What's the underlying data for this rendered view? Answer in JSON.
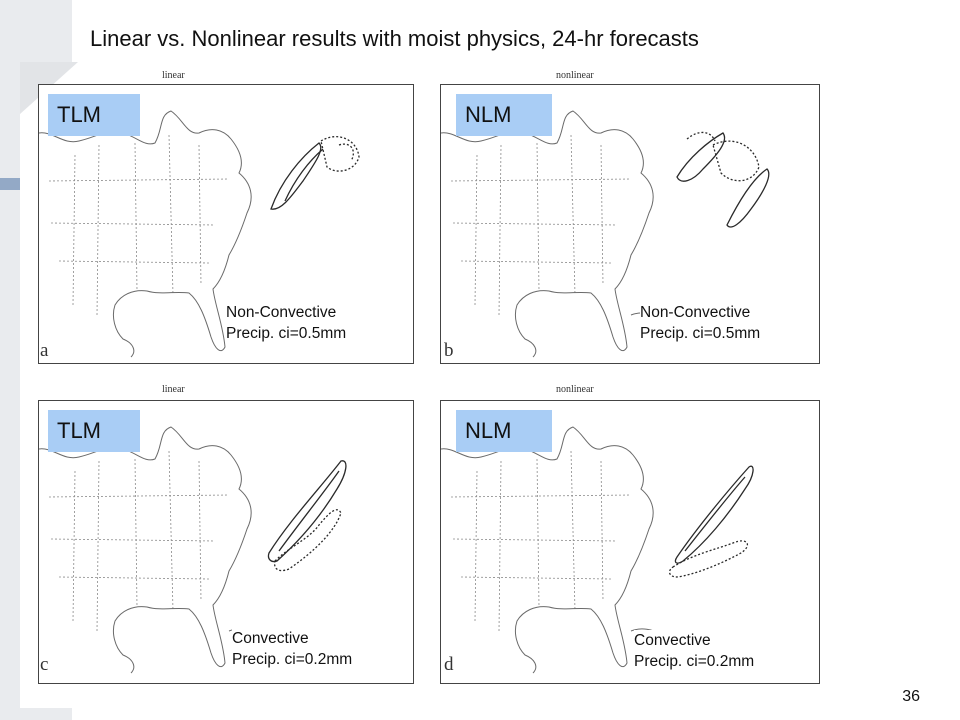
{
  "slide": {
    "title": "Linear vs. Nonlinear results with moist physics, 24-hr forecasts",
    "page_number": "36"
  },
  "panels": [
    {
      "heading": "linear",
      "badge": "TLM",
      "caption": [
        "Non-Convective",
        "Precip. ci=0.5mm"
      ],
      "letter": "a"
    },
    {
      "heading": "nonlinear",
      "badge": "NLM",
      "caption": [
        "Non-Convective",
        "Precip. ci=0.5mm"
      ],
      "letter": "b"
    },
    {
      "heading": "linear",
      "badge": "TLM",
      "caption": [
        "Convective",
        "Precip. ci=0.2mm"
      ],
      "letter": "c"
    },
    {
      "heading": "nonlinear",
      "badge": "NLM",
      "caption": [
        "Convective",
        "Precip. ci=0.2mm"
      ],
      "letter": "d"
    }
  ],
  "colors": {
    "badge": "#a9cdf5",
    "side_band": "#e9ebee",
    "accent": "#93a9c6"
  }
}
